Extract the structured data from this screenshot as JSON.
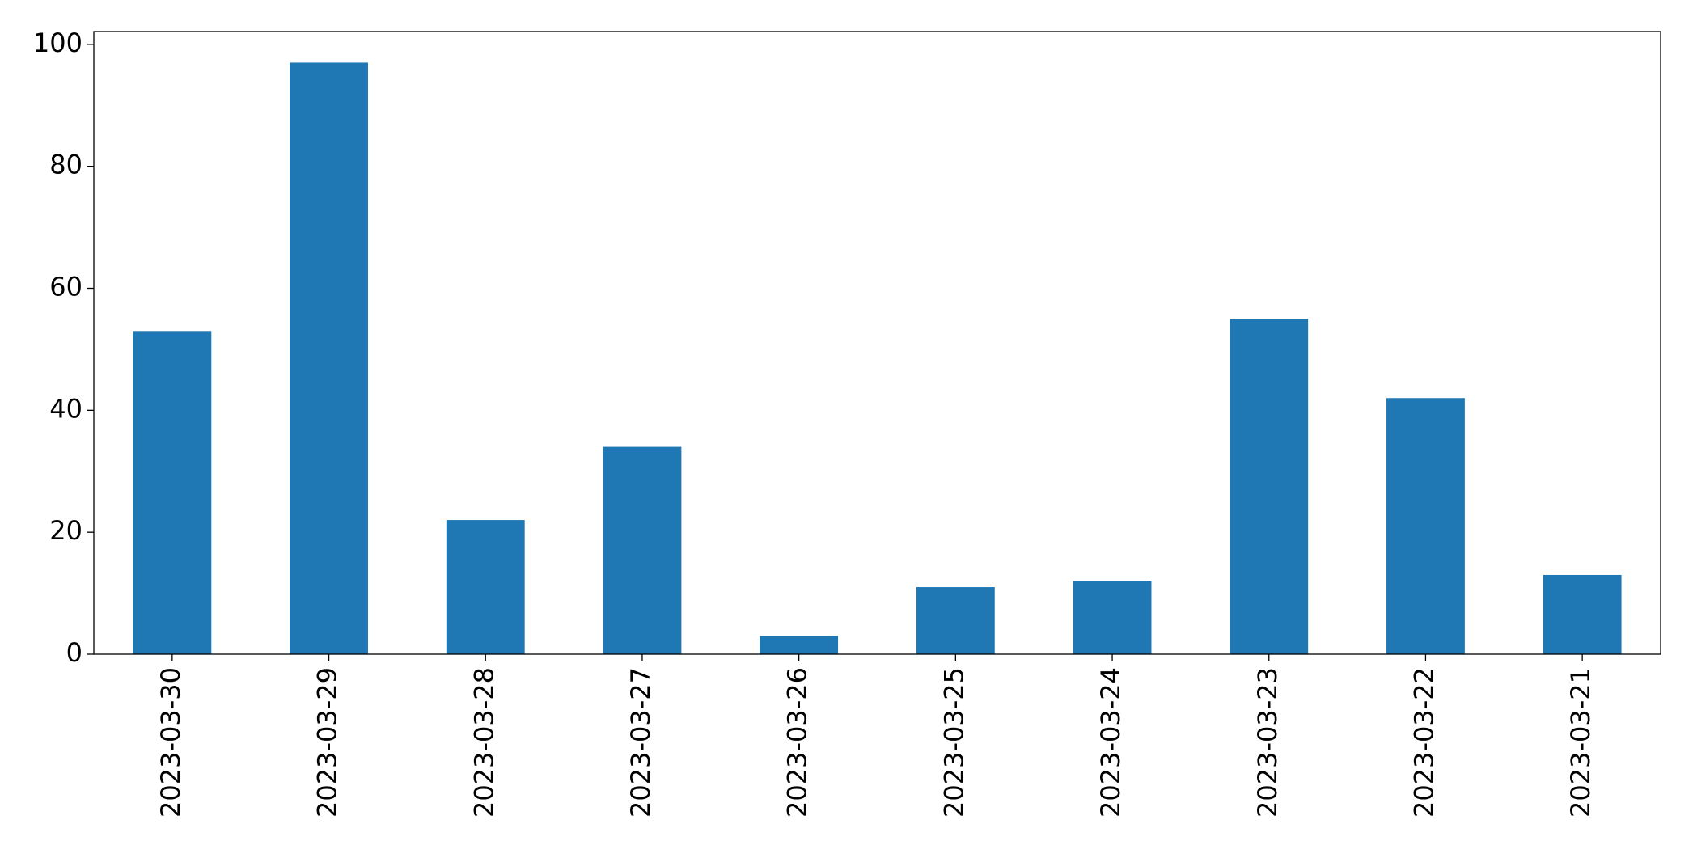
{
  "chart_data": {
    "type": "bar",
    "categories": [
      "2023-03-30",
      "2023-03-29",
      "2023-03-28",
      "2023-03-27",
      "2023-03-26",
      "2023-03-25",
      "2023-03-24",
      "2023-03-23",
      "2023-03-22",
      "2023-03-21"
    ],
    "values": [
      53,
      97,
      22,
      34,
      3,
      11,
      12,
      55,
      42,
      13
    ],
    "color": "#1f77b4",
    "ylim": [
      0,
      102.1
    ],
    "yticks": [
      0,
      20,
      40,
      60,
      80,
      100
    ],
    "grid": false
  }
}
